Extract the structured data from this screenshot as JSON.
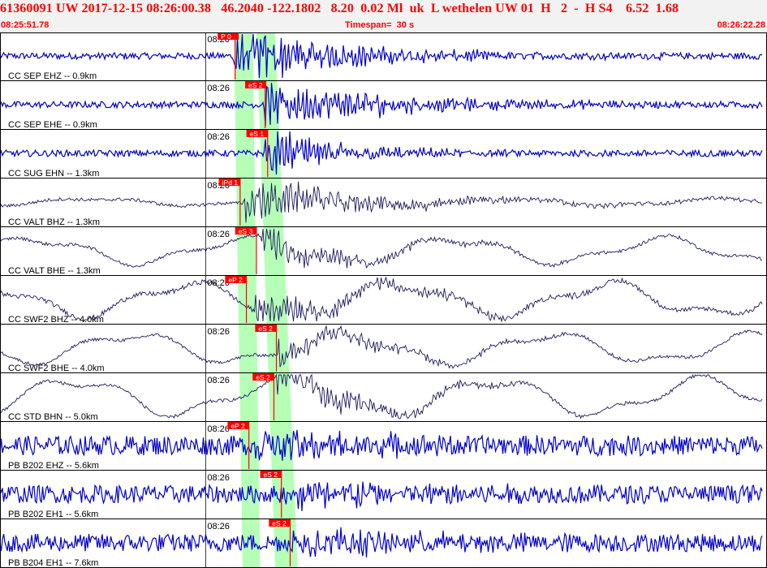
{
  "header": {
    "title": "61360091 UW 2017-12-15 08:26:00.38   46.2040 -122.1802   8.20  0.02 Ml  uk  L wethelen UW 01  H   2  -  H S4    6.52  1.68",
    "start_time": "08:25:51.78",
    "timespan": "Timespan=  30 s",
    "end_time": "08:26:22.28"
  },
  "colors": {
    "pick_red": "#ff0000",
    "window_green": "#b6ffb6",
    "trace_blue": "#0000cc",
    "trace_navy": "#1a1a5e",
    "header_red": "#ff0000"
  },
  "chart_data": {
    "type": "line",
    "title": "61360091 UW 2017-12-15 08:26:00.38",
    "x_range_s": [
      0,
      30.5
    ],
    "minute_tick_label": "08:26",
    "minute_tick_s": 8.22,
    "green_windows_s": [
      [
        9.35,
        10.1
      ],
      [
        10.25,
        11.0
      ]
    ],
    "green_windows_bottom_s": [
      [
        9.7,
        10.4
      ],
      [
        11.0,
        11.9
      ]
    ],
    "traces": [
      {
        "label": "CC SEP EHZ -- 0.9km",
        "color": "blue",
        "picks": [
          {
            "text": "P 0",
            "t": 8.7,
            "line_t": 9.4
          }
        ]
      },
      {
        "label": "CC SEP EHE -- 0.9km",
        "color": "blue",
        "picks": [
          {
            "text": "eS 2",
            "t": 9.8,
            "line_t": 10.6
          }
        ]
      },
      {
        "label": "CC SUG EHN -- 1.3km",
        "color": "blue",
        "picks": [
          {
            "text": "eS 1",
            "t": 9.85,
            "line_t": 10.7
          }
        ]
      },
      {
        "label": "CC VALT BHZ -- 1.3km",
        "color": "navy",
        "picks": [
          {
            "text": "iPd 1",
            "t": 8.75,
            "line_t": 9.6
          }
        ]
      },
      {
        "label": "CC VALT BHE -- 1.3km",
        "color": "navy",
        "picks": [
          {
            "text": "eS 3",
            "t": 9.4,
            "line_t": 10.25
          }
        ]
      },
      {
        "label": "CC SWF2 BHZ -- 4.0km",
        "color": "navy",
        "picks": [
          {
            "text": "eP 2",
            "t": 9.0,
            "line_t": 9.85
          }
        ]
      },
      {
        "label": "CC SWF2 BHE -- 4.0km",
        "color": "navy",
        "picks": [
          {
            "text": "eS 2",
            "t": 10.2,
            "line_t": 11.05
          }
        ]
      },
      {
        "label": "CC STD BHN -- 5.0km",
        "color": "navy",
        "picks": [
          {
            "text": "eS 2",
            "t": 10.1,
            "line_t": 10.95
          }
        ]
      },
      {
        "label": "PB B202 EHZ -- 5.6km",
        "color": "blue",
        "picks": [
          {
            "text": "eP 2",
            "t": 9.1,
            "line_t": 9.95
          }
        ]
      },
      {
        "label": "PB B202 EH1 -- 5.6km",
        "color": "blue",
        "picks": [
          {
            "text": "eS 2",
            "t": 10.4,
            "line_t": 11.25
          }
        ]
      },
      {
        "label": "PB B204 EH1 -- 7.6km",
        "color": "blue",
        "picks": [
          {
            "text": "eS 2",
            "t": 10.75,
            "line_t": 11.6
          }
        ]
      }
    ]
  }
}
